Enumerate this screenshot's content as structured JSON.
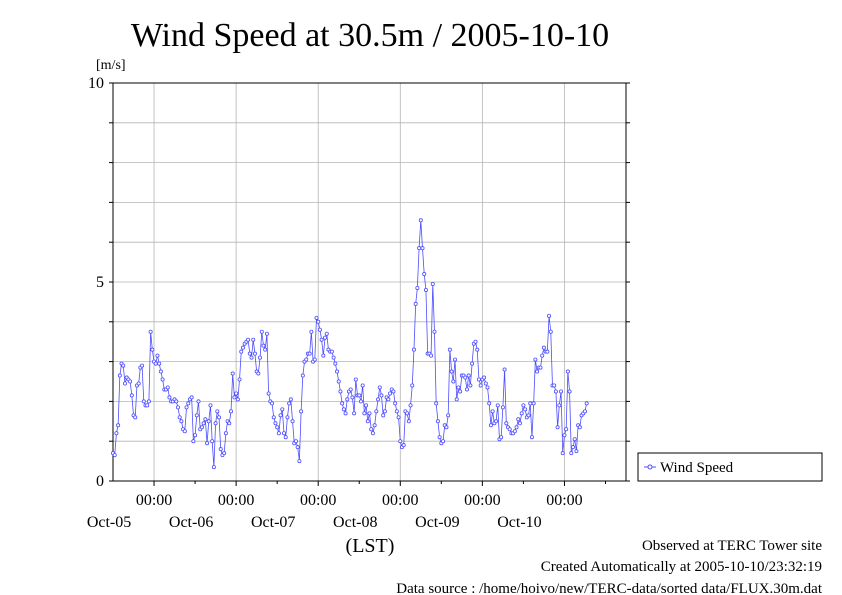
{
  "chart_data": {
    "type": "line",
    "title": "Wind Speed at 30.5m / 2005-10-10",
    "ylabel": "[m/s]",
    "xlabel": "(LST)",
    "ylim": [
      0,
      10
    ],
    "yticks": [
      0,
      5,
      10
    ],
    "xlim": [
      "2005-10-04 12:00",
      "2005-10-10 18:00"
    ],
    "xtick_labels": [
      {
        "time": "00:00",
        "date": "Oct-05"
      },
      {
        "time": "00:00",
        "date": "Oct-06"
      },
      {
        "time": "00:00",
        "date": "Oct-07"
      },
      {
        "time": "00:00",
        "date": "Oct-08"
      },
      {
        "time": "00:00",
        "date": "Oct-09"
      },
      {
        "time": "00:00",
        "date": "Oct-10"
      }
    ],
    "grid": true,
    "legend_position": "right",
    "series": [
      {
        "name": "Wind Speed",
        "color": "#4d4dff",
        "interval_hours": 0.5,
        "start": "2005-10-04 12:00",
        "values": [
          0.7,
          0.65,
          1.2,
          1.4,
          2.65,
          2.95,
          2.9,
          2.45,
          2.6,
          2.55,
          2.5,
          2.15,
          1.65,
          1.6,
          2.4,
          2.45,
          2.85,
          2.9,
          2.0,
          1.9,
          1.9,
          2.0,
          3.75,
          3.3,
          3.0,
          2.95,
          3.15,
          2.95,
          2.75,
          2.55,
          2.3,
          2.3,
          2.35,
          2.1,
          2.0,
          2.0,
          2.05,
          2.0,
          1.85,
          1.6,
          1.5,
          1.3,
          1.25,
          1.85,
          1.95,
          2.05,
          2.1,
          1.0,
          1.15,
          1.65,
          2.0,
          1.3,
          1.35,
          1.45,
          1.55,
          0.95,
          1.5,
          1.9,
          1.0,
          0.35,
          1.45,
          1.75,
          1.6,
          0.8,
          0.65,
          0.7,
          1.2,
          1.5,
          1.45,
          1.75,
          2.7,
          2.1,
          2.2,
          2.05,
          2.55,
          3.25,
          3.35,
          3.45,
          3.5,
          3.55,
          3.2,
          3.1,
          3.55,
          3.2,
          2.75,
          2.7,
          3.1,
          3.75,
          3.4,
          3.3,
          3.7,
          2.2,
          2.0,
          1.95,
          1.6,
          1.45,
          1.35,
          1.2,
          1.65,
          1.8,
          1.2,
          1.1,
          1.6,
          1.95,
          2.05,
          1.5,
          0.95,
          1.0,
          0.85,
          0.5,
          1.75,
          2.65,
          3.0,
          3.05,
          3.2,
          3.2,
          3.75,
          3.0,
          3.05,
          4.1,
          4.0,
          3.8,
          3.55,
          3.15,
          3.6,
          3.7,
          3.3,
          3.25,
          3.25,
          3.1,
          2.95,
          2.75,
          2.5,
          2.25,
          1.95,
          1.8,
          1.7,
          2.05,
          2.25,
          2.3,
          2.1,
          1.7,
          2.55,
          2.15,
          2.15,
          2.0,
          2.4,
          1.7,
          1.9,
          1.5,
          1.7,
          1.3,
          1.2,
          1.4,
          1.75,
          2.05,
          2.35,
          2.15,
          1.65,
          1.75,
          2.1,
          2.05,
          2.2,
          2.3,
          2.25,
          1.95,
          1.75,
          1.6,
          1.0,
          0.85,
          0.9,
          1.75,
          1.7,
          1.5,
          1.9,
          2.4,
          3.3,
          4.45,
          4.85,
          5.85,
          6.55,
          5.85,
          5.2,
          4.8,
          3.2,
          3.2,
          3.15,
          4.95,
          3.75,
          1.95,
          1.5,
          1.1,
          0.95,
          1.0,
          1.4,
          1.35,
          1.65,
          3.3,
          2.75,
          2.5,
          3.05,
          2.05,
          2.35,
          2.25,
          2.65,
          2.65,
          2.6,
          2.3,
          2.65,
          2.4,
          2.95,
          3.45,
          3.5,
          3.3,
          2.55,
          2.4,
          2.55,
          2.6,
          2.45,
          2.35,
          1.95,
          1.4,
          1.75,
          1.45,
          1.5,
          1.9,
          1.05,
          1.1,
          1.85,
          2.8,
          1.45,
          1.35,
          1.3,
          1.2,
          1.2,
          1.25,
          1.35,
          1.55,
          1.45,
          1.7,
          1.9,
          1.8,
          1.6,
          1.65,
          1.95,
          1.1,
          1.95,
          3.05,
          2.75,
          2.85,
          2.85,
          3.15,
          3.35,
          3.25,
          3.25,
          4.15,
          3.75,
          2.4,
          2.4,
          2.25,
          1.35,
          1.9,
          2.25,
          0.7,
          1.15,
          1.3,
          2.75,
          2.25,
          0.7,
          0.85,
          1.05,
          0.75,
          1.4,
          1.35,
          1.65,
          1.7,
          1.75,
          1.95
        ]
      }
    ]
  },
  "footer": {
    "observed": "Observed at TERC Tower site",
    "created": "Created Automatically at 2005-10-10/23:32:19",
    "source": "Data source : /home/hoivo/new/TERC-data/sorted  data/FLUX.30m.dat"
  }
}
